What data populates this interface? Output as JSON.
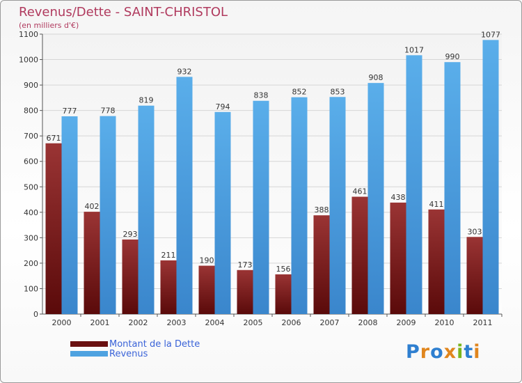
{
  "title": "Revenus/Dette - SAINT-CHRISTOL",
  "subtitle": "(en milliers d'€)",
  "logo": "Proxiti",
  "legend": {
    "debt_label": "Montant de la Dette",
    "revenue_label": "Revenus"
  },
  "colors": {
    "debt": "#7a1a1a",
    "revenue": "#4ea2e0",
    "title": "#b03a5e",
    "legend_text": "#3a63d8"
  },
  "chart_data": {
    "type": "bar",
    "title": "Revenus/Dette - SAINT-CHRISTOL",
    "subtitle": "(en milliers d'€)",
    "categories": [
      "2000",
      "2001",
      "2002",
      "2003",
      "2004",
      "2005",
      "2006",
      "2007",
      "2008",
      "2009",
      "2010",
      "2011"
    ],
    "series": [
      {
        "name": "Montant de la Dette",
        "values": [
          671,
          402,
          293,
          211,
          190,
          173,
          156,
          388,
          461,
          438,
          411,
          303
        ]
      },
      {
        "name": "Revenus",
        "values": [
          777,
          778,
          819,
          932,
          794,
          838,
          852,
          853,
          908,
          1017,
          990,
          1077
        ]
      }
    ],
    "yticks": [
      0,
      100,
      200,
      300,
      400,
      500,
      600,
      700,
      800,
      900,
      1000,
      1100
    ],
    "ylim": [
      0,
      1100
    ],
    "grid": true,
    "legend_position": "bottom-left"
  }
}
